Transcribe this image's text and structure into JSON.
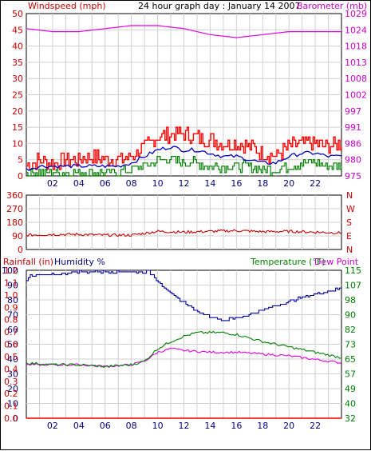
{
  "chart_data": [
    {
      "type": "line",
      "title": "24 hour graph day : January 14 2007",
      "left_axis_label": "Windspeed (mph)",
      "right_axis_label": "Barometer (mb)",
      "x_ticks": [
        "02",
        "04",
        "06",
        "08",
        "10",
        "12",
        "14",
        "16",
        "18",
        "20",
        "22"
      ],
      "xlim": [
        0,
        24
      ],
      "left_ticks": [
        "0",
        "5",
        "10",
        "15",
        "20",
        "25",
        "30",
        "35",
        "40",
        "45",
        "50"
      ],
      "left_lim": [
        0,
        50
      ],
      "right_ticks": [
        "975",
        "980",
        "986",
        "991",
        "997",
        "1002",
        "1008",
        "1013",
        "1018",
        "1024",
        "1029"
      ],
      "right_lim": [
        975,
        1029
      ],
      "grid": true,
      "colors": {
        "gust": "#ff0000",
        "avg": "#0000c0",
        "min": "#008000",
        "barometer": "#e000e0",
        "left_text": "#cc0000",
        "right_text": "#cc00cc"
      },
      "barometer": {
        "x": [
          0,
          2,
          4,
          6,
          8,
          10,
          12,
          14,
          16,
          18,
          20,
          22,
          24
        ],
        "y": [
          1024,
          1023,
          1023,
          1024,
          1025,
          1025,
          1024,
          1022,
          1021,
          1022,
          1023,
          1023,
          1023
        ]
      },
      "wind_gust": {
        "x": [
          0,
          1,
          2,
          3,
          4,
          5,
          6,
          7,
          8,
          9,
          10,
          11,
          12,
          13,
          14,
          15,
          16,
          17,
          18,
          19,
          20,
          21,
          22,
          23,
          24
        ],
        "y": [
          3,
          5,
          4,
          5,
          5,
          6,
          5,
          5,
          6,
          9,
          12,
          13,
          13,
          12,
          11,
          10,
          10,
          9,
          7,
          6,
          9,
          10,
          10,
          9,
          10
        ]
      },
      "wind_avg": {
        "x": [
          0,
          1,
          2,
          3,
          4,
          5,
          6,
          7,
          8,
          9,
          10,
          11,
          12,
          13,
          14,
          15,
          16,
          17,
          18,
          19,
          20,
          21,
          22,
          23,
          24
        ],
        "y": [
          2,
          3,
          3,
          3,
          3,
          3,
          3,
          3,
          4,
          6,
          8,
          9,
          8,
          8,
          7,
          6,
          6,
          5,
          4,
          4,
          6,
          7,
          7,
          6,
          6
        ]
      },
      "wind_min": {
        "x": [
          0,
          1,
          2,
          3,
          4,
          5,
          6,
          7,
          8,
          9,
          10,
          11,
          12,
          13,
          14,
          15,
          16,
          17,
          18,
          19,
          20,
          21,
          22,
          23,
          24
        ],
        "y": [
          1,
          1,
          1,
          1,
          1,
          1,
          1,
          1,
          2,
          3,
          5,
          5,
          4,
          4,
          3,
          3,
          3,
          3,
          2,
          2,
          3,
          4,
          4,
          3,
          3
        ]
      }
    },
    {
      "type": "line",
      "left_ticks": [
        "0",
        "90",
        "180",
        "270",
        "360"
      ],
      "left_lim": [
        0,
        360
      ],
      "right_labels": [
        "N",
        "W",
        "S",
        "E",
        "N"
      ],
      "xlim": [
        0,
        24
      ],
      "grid": true,
      "colors": {
        "direction": "#cc0000",
        "text": "#cc0000"
      },
      "wind_direction": {
        "x": [
          0,
          2,
          4,
          6,
          8,
          10,
          12,
          14,
          16,
          18,
          20,
          22,
          24
        ],
        "y": [
          95,
          100,
          100,
          95,
          95,
          120,
          115,
          120,
          125,
          118,
          120,
          115,
          110
        ]
      }
    },
    {
      "type": "line",
      "labels": {
        "rain": "Rainfall (in)",
        "humidity": "Humidity %",
        "temperature": "Temperature (°F)",
        "dewpoint": "Dew Point"
      },
      "x_ticks": [
        "02",
        "04",
        "06",
        "08",
        "10",
        "12",
        "14",
        "16",
        "18",
        "20",
        "22"
      ],
      "xlim": [
        0,
        24
      ],
      "humidity_ticks": [
        "0",
        "10",
        "20",
        "30",
        "40",
        "50",
        "60",
        "70",
        "80",
        "90",
        "100"
      ],
      "humidity_lim": [
        0,
        100
      ],
      "rain_ticks": [
        "0.0",
        "0.1",
        "0.2",
        "0.3",
        "0.4",
        "0.5",
        "0.6",
        "0.7",
        "0.8",
        "0.9",
        "1.0",
        "1.1",
        "1.2"
      ],
      "rain_lim": [
        0,
        1.2
      ],
      "temp_ticks": [
        "32",
        "40",
        "49",
        "57",
        "65",
        "73",
        "82",
        "90",
        "98",
        "107",
        "115"
      ],
      "temp_lim": [
        32,
        115
      ],
      "grid": true,
      "colors": {
        "humidity": "#0000a0",
        "temperature": "#008000",
        "dewpoint": "#e000e0",
        "rain": "#ff0000",
        "rain_text": "#cc0000",
        "humidity_text": "#000080",
        "temp_text": "#008000"
      },
      "humidity": {
        "x": [
          0,
          0.3,
          2,
          4,
          6,
          8,
          9.3,
          10,
          11,
          12,
          13,
          14,
          15,
          16,
          17,
          18,
          20,
          22,
          24
        ],
        "y": [
          94,
          96,
          97,
          99,
          99,
          99,
          99,
          93,
          84,
          78,
          72,
          69,
          66,
          68,
          70,
          73,
          79,
          84,
          88
        ]
      },
      "temperature": {
        "x": [
          0,
          2,
          4,
          6,
          8,
          9,
          10,
          11,
          12,
          13,
          14,
          15,
          16,
          17,
          18,
          20,
          22,
          24
        ],
        "y": [
          63,
          62,
          62,
          61,
          62,
          64,
          71,
          75,
          78,
          80,
          80,
          80,
          79,
          77,
          75,
          72,
          69,
          66
        ]
      },
      "dewpoint": {
        "x": [
          0,
          2,
          4,
          6,
          8,
          9,
          10,
          11,
          12,
          14,
          16,
          18,
          20,
          22,
          24
        ],
        "y": [
          62,
          62,
          62,
          61,
          62,
          64,
          69,
          71,
          70,
          69,
          69,
          68,
          67,
          65,
          63
        ]
      },
      "rainfall": {
        "x": [
          0,
          24
        ],
        "y": [
          0.0,
          0.0
        ]
      }
    }
  ]
}
